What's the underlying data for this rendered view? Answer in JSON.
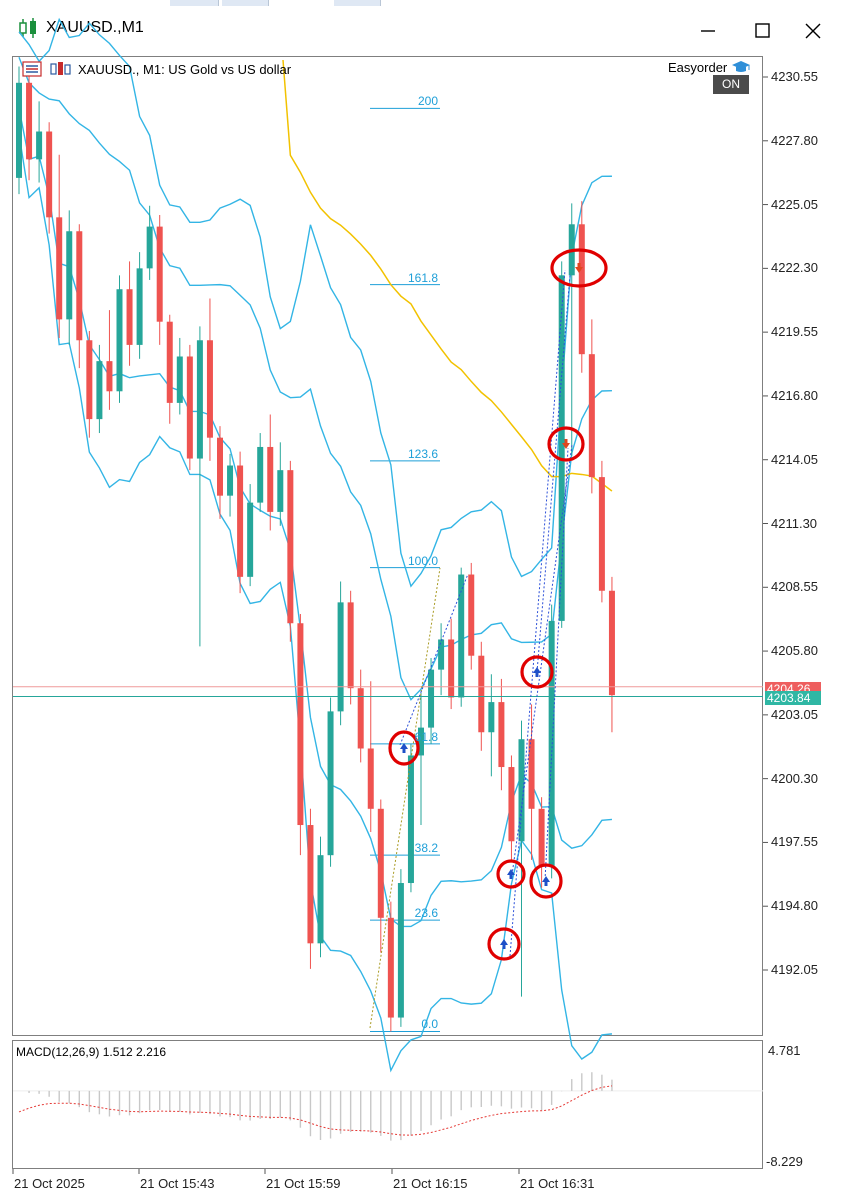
{
  "window": {
    "title": "XAUUSD.,M1",
    "controls": {
      "minimize": "minimize",
      "maximize": "maximize",
      "close": "close"
    }
  },
  "chart": {
    "symbol_text": "XAUUSD., M1:  US Gold vs US dollar",
    "easyorder_label": "Easyorder",
    "on_badge": "ON",
    "bid_tag": "4204.26",
    "ask_tag": "4203.84",
    "colors": {
      "bull": "#26a69a",
      "bear": "#ef5350",
      "bands": "#33b5e5",
      "ma": "#f2c200",
      "fib": "#1e9fd8",
      "marker": "#e00000"
    },
    "price_axis": [
      "4230.55",
      "4227.80",
      "4225.05",
      "4222.30",
      "4219.55",
      "4216.80",
      "4214.05",
      "4211.30",
      "4208.55",
      "4205.80",
      "4203.05",
      "4200.30",
      "4197.55",
      "4194.80",
      "4192.05"
    ],
    "time_axis": [
      "21 Oct 2025",
      "21 Oct 15:43",
      "21 Oct 15:59",
      "21 Oct 16:15",
      "21 Oct 16:31"
    ],
    "fib_levels": [
      {
        "label": "200",
        "price": 4229.2
      },
      {
        "label": "161.8",
        "price": 4221.6
      },
      {
        "label": "123.6",
        "price": 4214.0
      },
      {
        "label": "100.0",
        "price": 4209.4
      },
      {
        "label": "61.8",
        "price": 4201.8
      },
      {
        "label": "38.2",
        "price": 4197.0
      },
      {
        "label": "23.6",
        "price": 4194.2
      },
      {
        "label": "0.0",
        "price": 4189.4
      }
    ]
  },
  "chart_data": {
    "type": "candlestick",
    "title": "XAUUSD., M1:  US Gold vs US dollar",
    "ylim": [
      4189.0,
      4231.5
    ],
    "candles": [
      {
        "o": 4226.2,
        "h": 4231.0,
        "l": 4225.5,
        "c": 4230.3
      },
      {
        "o": 4230.3,
        "h": 4230.9,
        "l": 4226.1,
        "c": 4227.0
      },
      {
        "o": 4227.0,
        "h": 4229.5,
        "l": 4226.0,
        "c": 4228.2
      },
      {
        "o": 4228.2,
        "h": 4228.6,
        "l": 4223.8,
        "c": 4224.5
      },
      {
        "o": 4224.5,
        "h": 4227.2,
        "l": 4219.3,
        "c": 4220.1
      },
      {
        "o": 4220.1,
        "h": 4224.8,
        "l": 4219.0,
        "c": 4223.9
      },
      {
        "o": 4223.9,
        "h": 4224.2,
        "l": 4218.0,
        "c": 4219.2
      },
      {
        "o": 4219.2,
        "h": 4219.6,
        "l": 4215.0,
        "c": 4215.8
      },
      {
        "o": 4215.8,
        "h": 4219.0,
        "l": 4215.2,
        "c": 4218.3
      },
      {
        "o": 4218.3,
        "h": 4220.5,
        "l": 4216.2,
        "c": 4217.0
      },
      {
        "o": 4217.0,
        "h": 4222.0,
        "l": 4216.5,
        "c": 4221.4
      },
      {
        "o": 4221.4,
        "h": 4222.6,
        "l": 4218.1,
        "c": 4219.0
      },
      {
        "o": 4219.0,
        "h": 4223.0,
        "l": 4218.4,
        "c": 4222.3
      },
      {
        "o": 4222.3,
        "h": 4225.0,
        "l": 4221.8,
        "c": 4224.1
      },
      {
        "o": 4224.1,
        "h": 4224.6,
        "l": 4219.0,
        "c": 4220.0
      },
      {
        "o": 4220.0,
        "h": 4220.3,
        "l": 4215.6,
        "c": 4216.5
      },
      {
        "o": 4216.5,
        "h": 4219.3,
        "l": 4216.0,
        "c": 4218.5
      },
      {
        "o": 4218.5,
        "h": 4219.0,
        "l": 4213.6,
        "c": 4214.1
      },
      {
        "o": 4214.1,
        "h": 4219.8,
        "l": 4206.0,
        "c": 4219.2
      },
      {
        "o": 4219.2,
        "h": 4221.0,
        "l": 4214.0,
        "c": 4215.0
      },
      {
        "o": 4215.0,
        "h": 4215.5,
        "l": 4211.5,
        "c": 4212.5
      },
      {
        "o": 4212.5,
        "h": 4214.3,
        "l": 4211.6,
        "c": 4213.8
      },
      {
        "o": 4213.8,
        "h": 4214.4,
        "l": 4208.3,
        "c": 4209.0
      },
      {
        "o": 4209.0,
        "h": 4213.0,
        "l": 4208.6,
        "c": 4212.2
      },
      {
        "o": 4212.2,
        "h": 4215.2,
        "l": 4211.8,
        "c": 4214.6
      },
      {
        "o": 4214.6,
        "h": 4216.0,
        "l": 4211.0,
        "c": 4211.8
      },
      {
        "o": 4211.8,
        "h": 4214.8,
        "l": 4211.2,
        "c": 4213.6
      },
      {
        "o": 4213.6,
        "h": 4214.0,
        "l": 4206.2,
        "c": 4207.0
      },
      {
        "o": 4207.0,
        "h": 4207.4,
        "l": 4197.0,
        "c": 4198.3
      },
      {
        "o": 4198.3,
        "h": 4199.0,
        "l": 4192.1,
        "c": 4193.2
      },
      {
        "o": 4193.2,
        "h": 4197.8,
        "l": 4192.6,
        "c": 4197.0
      },
      {
        "o": 4197.0,
        "h": 4203.8,
        "l": 4196.5,
        "c": 4203.2
      },
      {
        "o": 4203.2,
        "h": 4208.8,
        "l": 4202.6,
        "c": 4207.9
      },
      {
        "o": 4207.9,
        "h": 4208.4,
        "l": 4203.5,
        "c": 4204.2
      },
      {
        "o": 4204.2,
        "h": 4205.0,
        "l": 4201.0,
        "c": 4201.6
      },
      {
        "o": 4201.6,
        "h": 4204.5,
        "l": 4198.0,
        "c": 4199.0
      },
      {
        "o": 4199.0,
        "h": 4199.4,
        "l": 4192.8,
        "c": 4194.3
      },
      {
        "o": 4194.3,
        "h": 4195.0,
        "l": 4189.4,
        "c": 4190.0
      },
      {
        "o": 4190.0,
        "h": 4196.4,
        "l": 4189.6,
        "c": 4195.8
      },
      {
        "o": 4195.8,
        "h": 4201.8,
        "l": 4195.4,
        "c": 4201.3
      },
      {
        "o": 4201.3,
        "h": 4204.0,
        "l": 4198.3,
        "c": 4202.5
      },
      {
        "o": 4202.5,
        "h": 4205.5,
        "l": 4201.8,
        "c": 4205.0
      },
      {
        "o": 4205.0,
        "h": 4207.0,
        "l": 4203.9,
        "c": 4206.3
      },
      {
        "o": 4206.3,
        "h": 4207.2,
        "l": 4203.3,
        "c": 4203.8
      },
      {
        "o": 4203.8,
        "h": 4209.4,
        "l": 4203.4,
        "c": 4209.1
      },
      {
        "o": 4209.1,
        "h": 4209.6,
        "l": 4205.0,
        "c": 4205.6
      },
      {
        "o": 4205.6,
        "h": 4206.2,
        "l": 4201.5,
        "c": 4202.3
      },
      {
        "o": 4202.3,
        "h": 4204.8,
        "l": 4200.4,
        "c": 4203.6
      },
      {
        "o": 4203.6,
        "h": 4204.6,
        "l": 4199.8,
        "c": 4200.8
      },
      {
        "o": 4200.8,
        "h": 4201.3,
        "l": 4196.8,
        "c": 4197.6
      },
      {
        "o": 4197.6,
        "h": 4202.8,
        "l": 4190.9,
        "c": 4202.0
      },
      {
        "o": 4202.0,
        "h": 4203.5,
        "l": 4196.8,
        "c": 4199.0
      },
      {
        "o": 4199.0,
        "h": 4199.5,
        "l": 4195.6,
        "c": 4196.5
      },
      {
        "o": 4196.5,
        "h": 4207.8,
        "l": 4196.0,
        "c": 4207.1
      },
      {
        "o": 4207.1,
        "h": 4222.6,
        "l": 4206.8,
        "c": 4222.0
      },
      {
        "o": 4222.0,
        "h": 4225.1,
        "l": 4214.2,
        "c": 4224.2
      },
      {
        "o": 4224.2,
        "h": 4225.2,
        "l": 4217.8,
        "c": 4218.6
      },
      {
        "o": 4218.6,
        "h": 4220.1,
        "l": 4212.6,
        "c": 4213.3
      },
      {
        "o": 4213.3,
        "h": 4214.0,
        "l": 4207.9,
        "c": 4208.4
      },
      {
        "o": 4208.4,
        "h": 4209.0,
        "l": 4202.3,
        "c": 4203.9
      }
    ],
    "indicators": [
      "Bollinger Bands (inner)",
      "Bollinger Bands (outer)",
      "Moving Average"
    ],
    "current_bid": 4204.26,
    "current_ask": 4203.84,
    "macd": {
      "label": "MACD(12,26,9) 1.512 2.216",
      "main": 1.512,
      "signal": 2.216,
      "ymax_label": "4.781",
      "ymin_label": "-8.229",
      "ylim": [
        -8.229,
        4.781
      ]
    }
  }
}
